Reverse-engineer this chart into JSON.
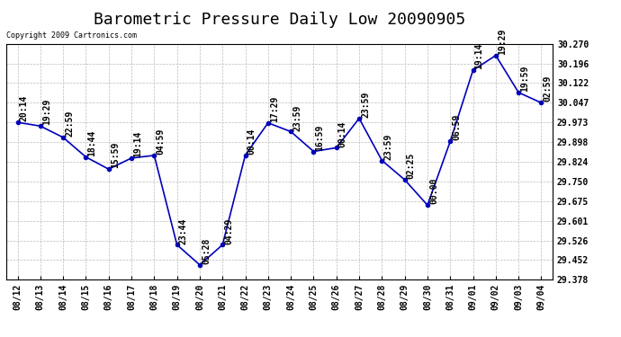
{
  "title": "Barometric Pressure Daily Low 20090905",
  "copyright": "Copyright 2009 Cartronics.com",
  "x_labels": [
    "08/12",
    "08/13",
    "08/14",
    "08/15",
    "08/16",
    "08/17",
    "08/18",
    "08/19",
    "08/20",
    "08/21",
    "08/22",
    "08/23",
    "08/24",
    "08/25",
    "08/26",
    "08/27",
    "08/28",
    "08/29",
    "08/30",
    "08/31",
    "09/01",
    "09/02",
    "09/03",
    "09/04"
  ],
  "y_values": [
    29.973,
    29.959,
    29.916,
    29.842,
    29.796,
    29.838,
    29.848,
    29.51,
    29.434,
    29.51,
    29.849,
    29.971,
    29.938,
    29.863,
    29.877,
    29.988,
    29.829,
    29.756,
    29.66,
    29.901,
    30.17,
    30.226,
    30.086,
    30.047
  ],
  "time_labels": [
    "20:14",
    "19:29",
    "22:59",
    "18:44",
    "15:59",
    "19:14",
    "04:59",
    "23:44",
    "05:28",
    "04:29",
    "00:14",
    "17:29",
    "23:59",
    "16:59",
    "00:14",
    "23:59",
    "23:59",
    "02:25",
    "00:00",
    "06:59",
    "19:14",
    "19:29",
    "19:59",
    "02:59"
  ],
  "line_color": "#0000bb",
  "marker_color": "#0000bb",
  "ylim_min": 29.378,
  "ylim_max": 30.27,
  "yticks": [
    29.378,
    29.452,
    29.526,
    29.601,
    29.675,
    29.75,
    29.824,
    29.898,
    29.973,
    30.047,
    30.122,
    30.196,
    30.27
  ],
  "bg_color": "#ffffff",
  "grid_color": "#bbbbbb",
  "title_fontsize": 13,
  "tick_fontsize": 7,
  "annot_fontsize": 7
}
